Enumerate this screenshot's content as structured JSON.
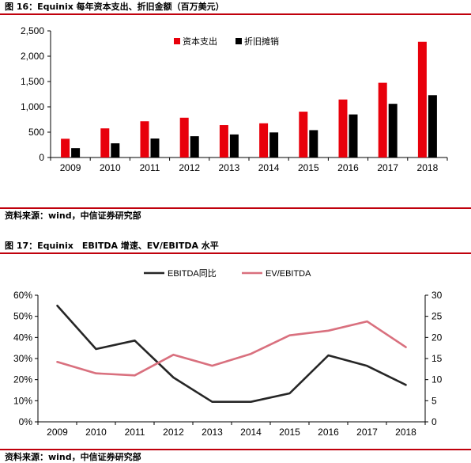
{
  "figures": [
    {
      "title": "图 16：Equinix 每年资本支出、折旧金额（百万美元）",
      "source": "资料来源：wind，中信证券研究部"
    },
    {
      "title": "图 17：Equinix　EBITDA 增速、EV/EBITDA 水平",
      "source": "资料来源：wind，中信证券研究部"
    }
  ],
  "chart_data": [
    {
      "type": "bar",
      "categories": [
        "2009",
        "2010",
        "2011",
        "2012",
        "2013",
        "2014",
        "2015",
        "2016",
        "2017",
        "2018"
      ],
      "series": [
        {
          "name": "资本支出",
          "color": "#e8000b",
          "values": [
            370,
            575,
            715,
            785,
            640,
            675,
            905,
            1145,
            1475,
            2285
          ]
        },
        {
          "name": "折旧摊销",
          "color": "#000000",
          "values": [
            185,
            280,
            375,
            420,
            455,
            495,
            540,
            850,
            1060,
            1230
          ]
        }
      ],
      "ylim": [
        0,
        2500
      ],
      "yticks": [
        "0",
        "500",
        "1,000",
        "1,500",
        "2,000",
        "2,500"
      ],
      "legend": "top-center"
    },
    {
      "type": "line",
      "categories": [
        "2009",
        "2010",
        "2011",
        "2012",
        "2013",
        "2014",
        "2015",
        "2016",
        "2017",
        "2018"
      ],
      "series": [
        {
          "name": "EBITDA同比",
          "axis": "left",
          "color": "#262626",
          "values": [
            55,
            34.5,
            38.5,
            21,
            9.5,
            9.5,
            13.5,
            31.5,
            26.5,
            17.5
          ]
        },
        {
          "name": "EV/EBITDA",
          "axis": "right",
          "color": "#d9707e",
          "values": [
            14.2,
            11.5,
            11.0,
            15.9,
            13.3,
            16.1,
            20.5,
            21.6,
            23.8,
            17.7
          ]
        }
      ],
      "ylim_left": [
        0,
        60
      ],
      "ylim_right": [
        0,
        30
      ],
      "yticks_left": [
        "0%",
        "10%",
        "20%",
        "30%",
        "40%",
        "50%",
        "60%"
      ],
      "yticks_right": [
        "0",
        "5",
        "10",
        "15",
        "20",
        "25",
        "30"
      ],
      "legend": "top-center"
    }
  ]
}
